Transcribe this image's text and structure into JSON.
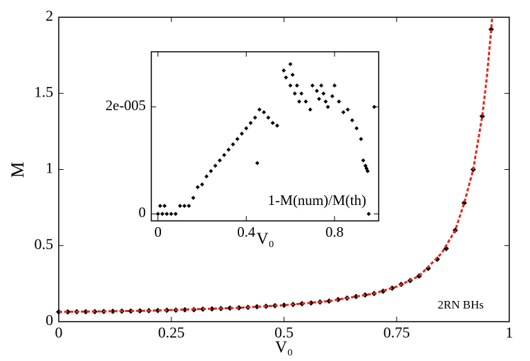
{
  "chart_data": [
    {
      "type": "scatter",
      "xlabel": "V₀",
      "ylabel": "M",
      "annotation": "2RN BHs",
      "xlim": [
        0,
        1
      ],
      "xticks": [
        0,
        0.25,
        0.5,
        0.75,
        1
      ],
      "ylim": [
        0,
        2
      ],
      "yticks": [
        0,
        0.5,
        1,
        1.5,
        2
      ],
      "x": [
        0,
        0.02,
        0.04,
        0.06,
        0.08,
        0.1,
        0.12,
        0.14,
        0.16,
        0.18,
        0.2,
        0.22,
        0.24,
        0.26,
        0.28,
        0.3,
        0.32,
        0.34,
        0.36,
        0.38,
        0.4,
        0.42,
        0.44,
        0.46,
        0.48,
        0.5,
        0.52,
        0.54,
        0.56,
        0.58,
        0.6,
        0.62,
        0.64,
        0.66,
        0.68,
        0.7,
        0.72,
        0.74,
        0.76,
        0.78,
        0.8,
        0.82,
        0.84,
        0.86,
        0.88,
        0.9,
        0.92,
        0.94,
        0.96
      ],
      "series": [
        {
          "color": "#000000",
          "marker": "diamond",
          "values": [
            0.064,
            0.064,
            0.065,
            0.065,
            0.066,
            0.067,
            0.068,
            0.069,
            0.07,
            0.071,
            0.072,
            0.073,
            0.075,
            0.076,
            0.078,
            0.079,
            0.082,
            0.084,
            0.086,
            0.089,
            0.091,
            0.094,
            0.098,
            0.101,
            0.105,
            0.108,
            0.113,
            0.118,
            0.123,
            0.129,
            0.135,
            0.145,
            0.155,
            0.165,
            0.175,
            0.185,
            0.2,
            0.22,
            0.245,
            0.27,
            0.3,
            0.35,
            0.41,
            0.48,
            0.6,
            0.78,
            1.0,
            1.35,
            1.92
          ]
        },
        {
          "color": "#e8241c",
          "marker": "dashed-line",
          "x": [
            0,
            0.2,
            0.4,
            0.5,
            0.6,
            0.7,
            0.75,
            0.8,
            0.85,
            0.88,
            0.9,
            0.92,
            0.94,
            0.95,
            0.96,
            0.962
          ],
          "values": [
            0.064,
            0.072,
            0.091,
            0.108,
            0.135,
            0.185,
            0.23,
            0.3,
            0.45,
            0.6,
            0.78,
            1.0,
            1.35,
            1.6,
            1.92,
            2.0
          ]
        }
      ]
    },
    {
      "type": "scatter",
      "xlabel": "V₀",
      "annotation": "1-M(num)/M(th)",
      "xlim": [
        -0.03,
        1.0
      ],
      "xticks": [
        0,
        0.4,
        0.8
      ],
      "ylim": [
        -1.3e-06,
        3.03e-05
      ],
      "yticks": [
        0,
        {
          "value": 2e-05,
          "label": "2e-005"
        }
      ],
      "x": [
        0,
        0.01,
        0.02,
        0.03,
        0.04,
        0.06,
        0.08,
        0.1,
        0.12,
        0.14,
        0.16,
        0.18,
        0.2,
        0.22,
        0.24,
        0.26,
        0.28,
        0.3,
        0.32,
        0.34,
        0.36,
        0.38,
        0.4,
        0.42,
        0.44,
        0.45,
        0.46,
        0.48,
        0.5,
        0.52,
        0.54,
        0.57,
        0.58,
        0.6,
        0.62,
        0.64,
        0.6,
        0.61,
        0.63,
        0.65,
        0.67,
        0.69,
        0.7,
        0.72,
        0.73,
        0.74,
        0.75,
        0.76,
        0.77,
        0.79,
        0.8,
        0.82,
        0.84,
        0.86,
        0.88,
        0.9,
        0.92,
        0.93,
        0.94,
        0.945,
        0.95,
        0.955,
        0.98
      ],
      "series": [
        {
          "color": "#000000",
          "marker": "diamond",
          "values": [
            0,
            1.5e-06,
            0,
            1.5e-06,
            0,
            0,
            0,
            1.5e-06,
            1.5e-06,
            1.5e-06,
            3e-06,
            5e-06,
            5.5e-06,
            7e-06,
            8e-06,
            9e-06,
            1e-05,
            1.1e-05,
            1.2e-05,
            1.3e-05,
            1.4e-05,
            1.5e-05,
            1.6e-05,
            1.7e-05,
            1.8e-05,
            9.5e-06,
            1.95e-05,
            1.9e-05,
            1.8e-05,
            1.7e-05,
            1.65e-05,
            2.68e-05,
            2.55e-05,
            2.4e-05,
            2.25e-05,
            2.1e-05,
            2.8e-05,
            2.6e-05,
            2.4e-05,
            2.25e-05,
            2.1e-05,
            1.95e-05,
            2.4e-05,
            2.3e-05,
            2.15e-05,
            2.4e-05,
            2.25e-05,
            2.1e-05,
            2e-05,
            2.2e-05,
            2.4e-05,
            2.1e-05,
            1.9e-05,
            1.95e-05,
            1.75e-05,
            1.6e-05,
            1.4e-05,
            1e-05,
            9e-06,
            8.5e-06,
            8e-06,
            0,
            2e-05
          ]
        }
      ]
    }
  ]
}
